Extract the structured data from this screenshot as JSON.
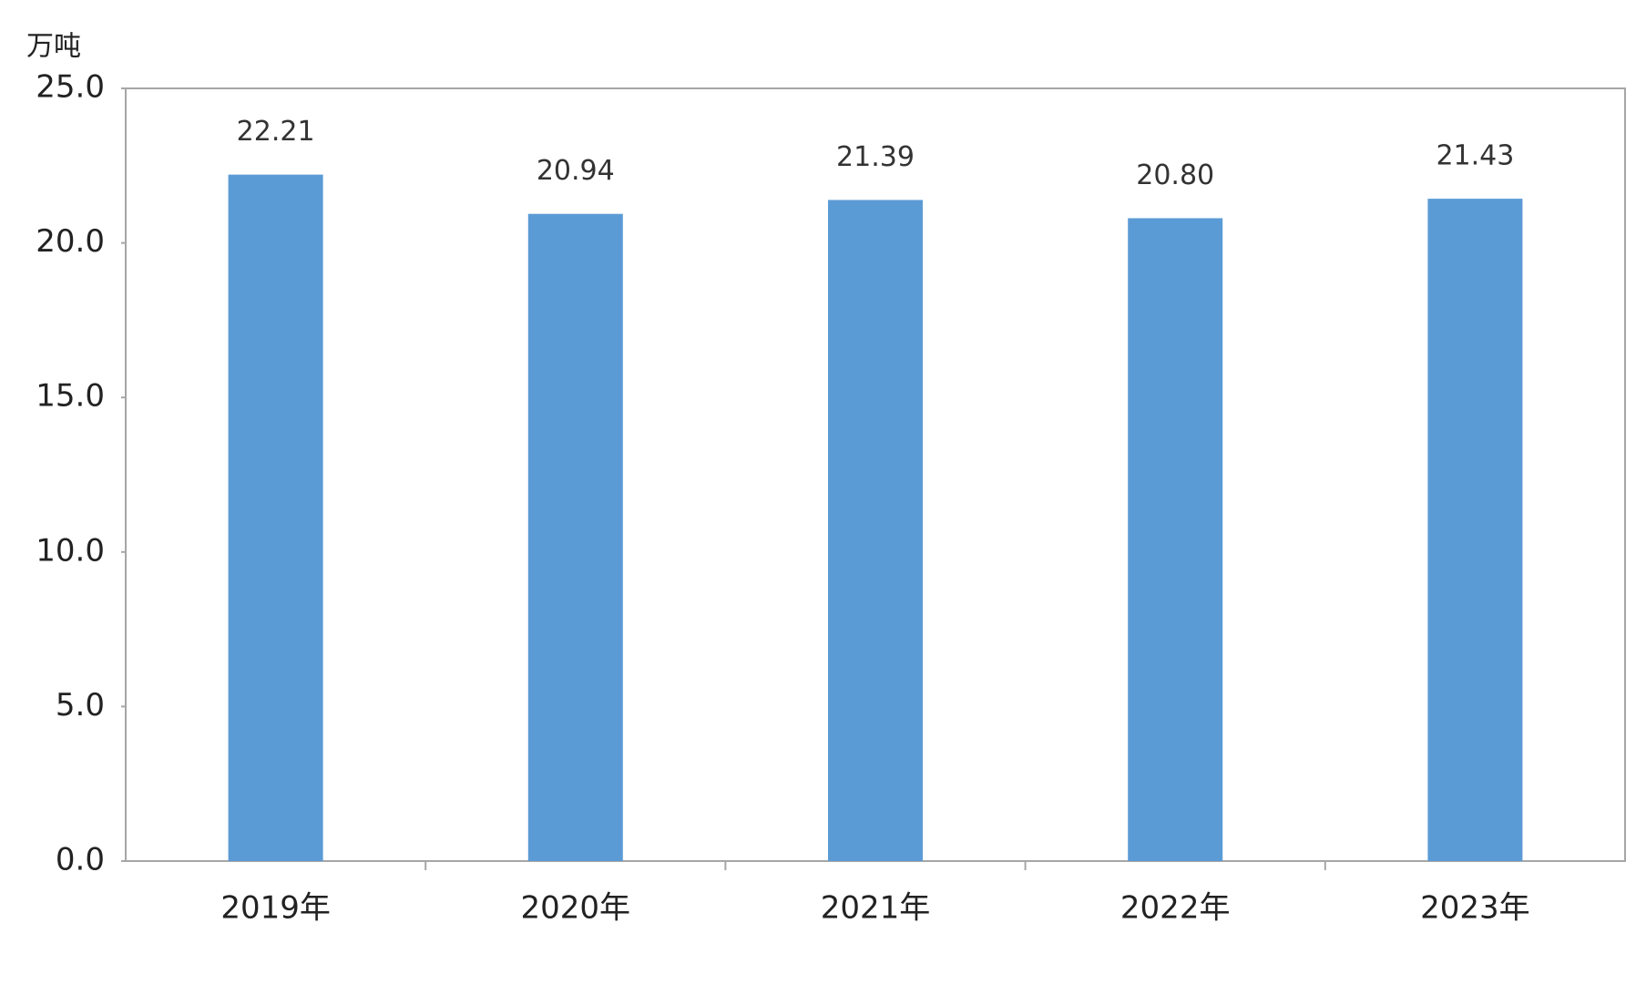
{
  "chart_data": {
    "type": "bar",
    "y_label": "万吨",
    "categories": [
      "2019年",
      "2020年",
      "2021年",
      "2022年",
      "2023年"
    ],
    "values": [
      22.21,
      20.94,
      21.39,
      20.8,
      21.43
    ],
    "value_labels": [
      "22.21",
      "20.94",
      "21.39",
      "20.80",
      "21.43"
    ],
    "color": "#5b9bd5",
    "ylim": [
      0,
      25
    ],
    "yticks": [
      {
        "value": 0,
        "label": "0.0"
      },
      {
        "value": 5,
        "label": "5.0"
      },
      {
        "value": 10,
        "label": "10.0"
      },
      {
        "value": 15,
        "label": "15.0"
      },
      {
        "value": 20,
        "label": "20.0"
      },
      {
        "value": 25,
        "label": "25.0"
      }
    ],
    "grid": false
  }
}
